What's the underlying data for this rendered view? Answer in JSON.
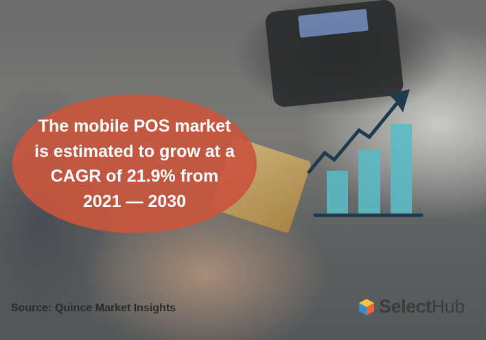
{
  "headline": {
    "lines": [
      "The mobile POS market",
      "is estimated to grow at a",
      "CAGR of 21.9% from",
      "2021 — 2030"
    ]
  },
  "source": "Source: Quince Market Insights",
  "logo": {
    "bold": "Select",
    "regular": "Hub"
  },
  "colors": {
    "bubble": "#c8553e",
    "bars": "#5bbac4",
    "arrow": "#1f3a4a",
    "text": "#ffffff"
  },
  "icons": {
    "chart": "growth-bar-chart-icon",
    "arrow": "trend-arrow-icon",
    "logo": "selecthub-cube-icon"
  }
}
